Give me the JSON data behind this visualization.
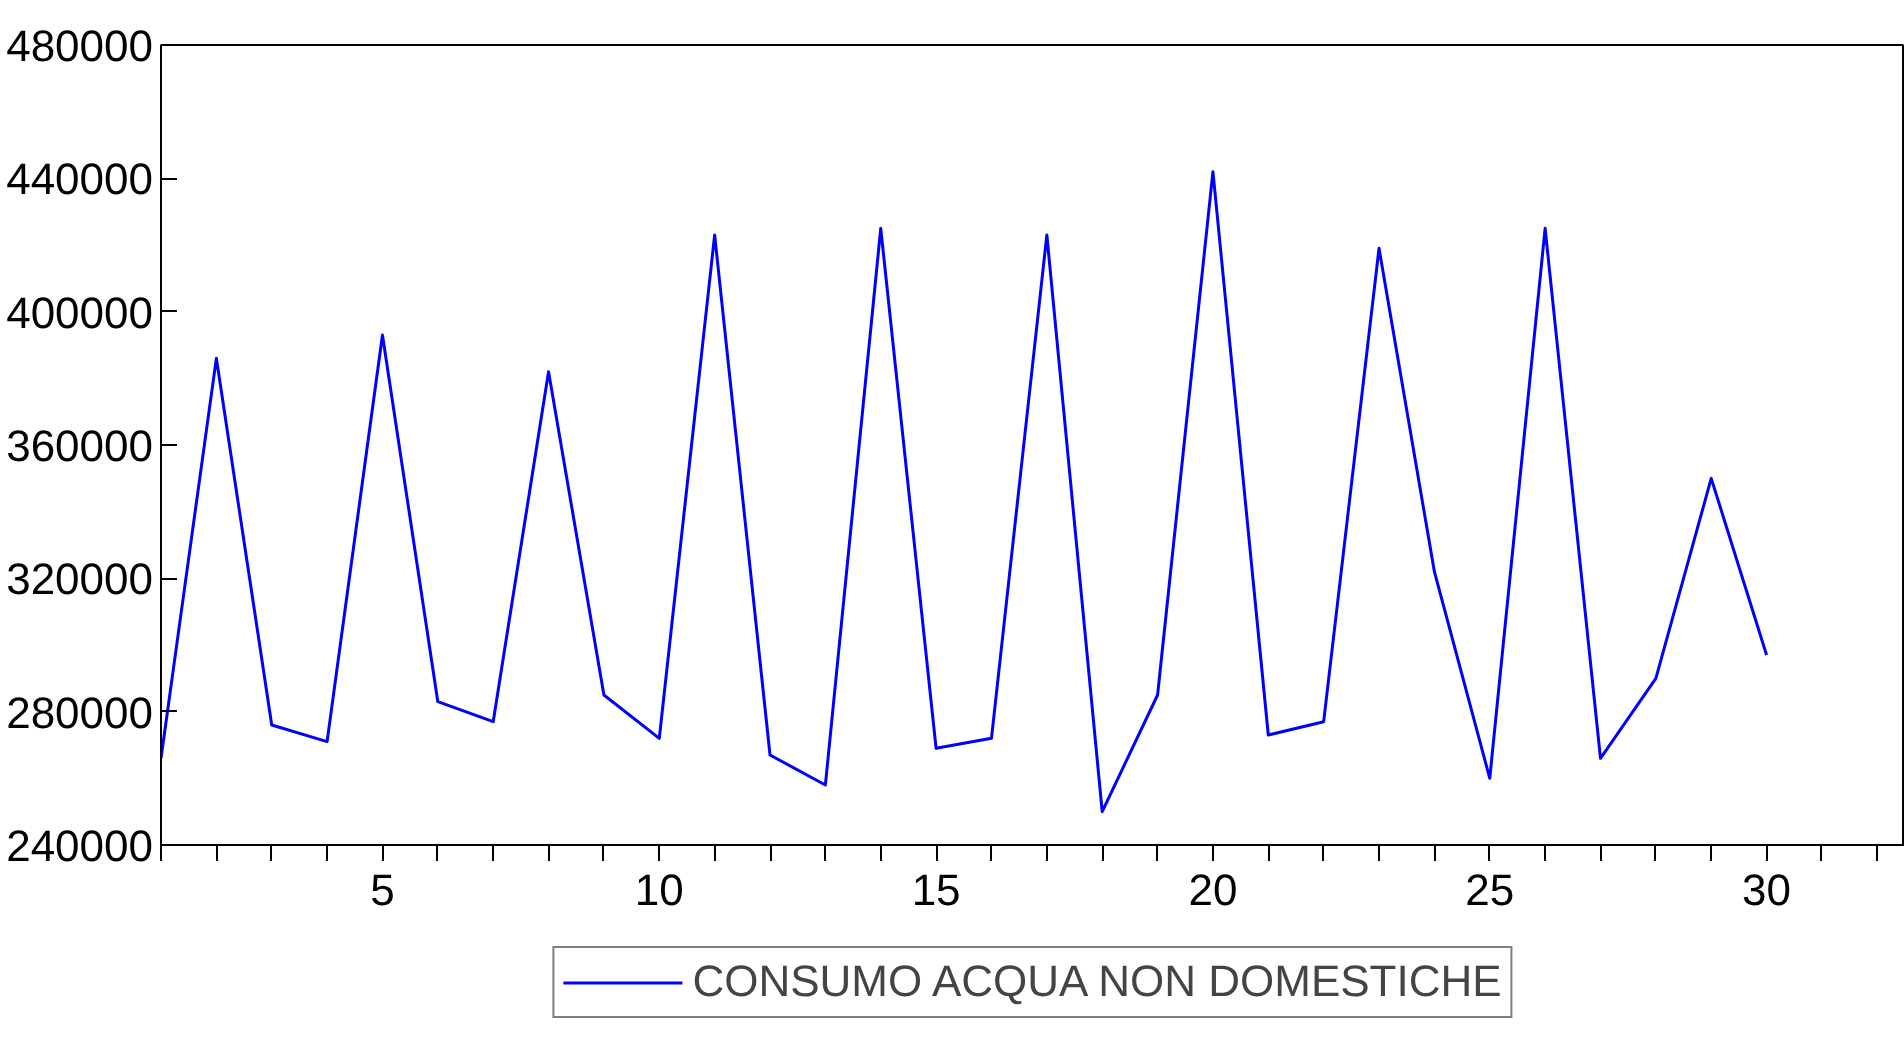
{
  "chart_data": {
    "type": "line",
    "x": [
      1,
      2,
      3,
      4,
      5,
      6,
      7,
      8,
      9,
      10,
      11,
      12,
      13,
      14,
      15,
      16,
      17,
      18,
      19,
      20,
      21,
      22,
      23,
      24,
      25,
      26,
      27,
      28,
      29,
      30
    ],
    "series": [
      {
        "name": "CONSUMO ACQUA NON DOMESTICHE",
        "color": "#0000ff",
        "values": [
          266000,
          386000,
          276000,
          271000,
          393000,
          283000,
          277000,
          382000,
          285000,
          272000,
          423000,
          267000,
          258000,
          425000,
          269000,
          272000,
          423000,
          250000,
          285000,
          442000,
          273000,
          277000,
          419000,
          322000,
          260000,
          425000,
          266000,
          290000,
          350000,
          297000
        ]
      }
    ],
    "xlim": [
      1,
      32.5
    ],
    "xticks": [
      5,
      10,
      15,
      20,
      25,
      30
    ],
    "ylim": [
      240000,
      480000
    ],
    "yticks": [
      240000,
      280000,
      320000,
      360000,
      400000,
      440000,
      480000
    ],
    "grid": false,
    "legend": "bottom",
    "marker": "none",
    "line_style": "solid"
  }
}
